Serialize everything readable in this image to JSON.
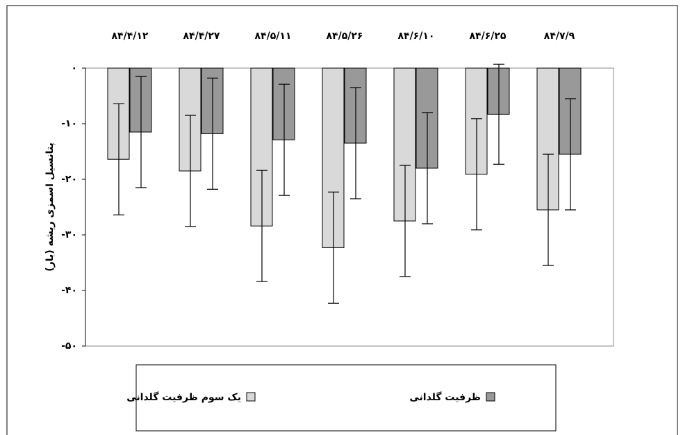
{
  "chart_data": {
    "type": "bar",
    "y_label": "پتانسیل اسمزی ریشه (بار)",
    "categories": [
      "۸۴/۴/۱۲",
      "۸۴/۴/۲۷",
      "۸۴/۵/۱۱",
      "۸۴/۵/۲۶",
      "۸۴/۶/۱۰",
      "۸۴/۶/۲۵",
      "۸۴/۷/۹"
    ],
    "series": [
      {
        "name": "یک سوم ظرفیت گلدانی",
        "color": "#d9d9d9",
        "values": [
          -16.4,
          -18.5,
          -28.4,
          -32.3,
          -27.5,
          -19.1,
          -25.5
        ],
        "errors": [
          10,
          10,
          10,
          10,
          10,
          10,
          10
        ]
      },
      {
        "name": "ظرفیت گلدانی",
        "color": "#999999",
        "values": [
          -11.5,
          -11.8,
          -12.9,
          -13.5,
          -18,
          -8.3,
          -15.5
        ],
        "errors": [
          10,
          10,
          10,
          10,
          10,
          9,
          10
        ]
      }
    ],
    "ylim": [
      -50,
      0
    ],
    "yticks": [
      {
        "value": 0,
        "label": "۰"
      },
      {
        "value": -10,
        "label": "-۱۰"
      },
      {
        "value": -20,
        "label": "-۲۰"
      },
      {
        "value": -30,
        "label": "-۳۰"
      },
      {
        "value": -40,
        "label": "-۴۰"
      },
      {
        "value": -50,
        "label": "-۵۰"
      }
    ],
    "grid": false
  }
}
